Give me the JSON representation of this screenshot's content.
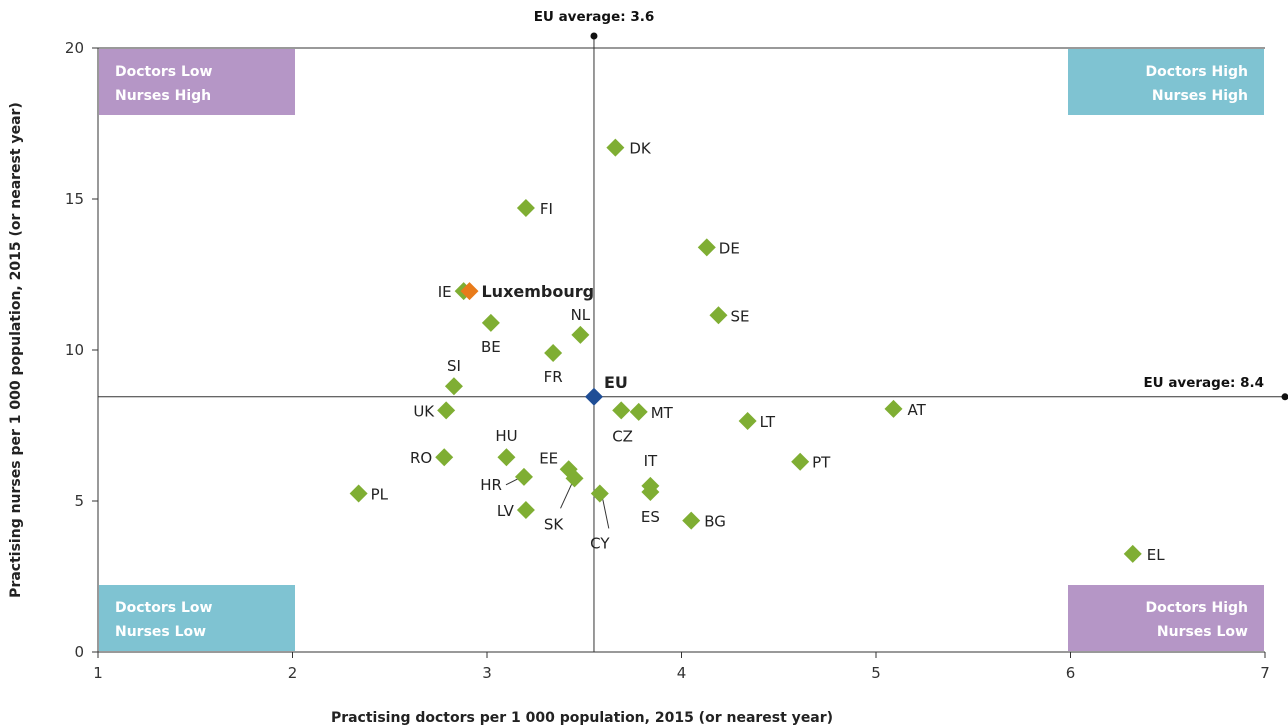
{
  "chart_data": {
    "type": "scatter",
    "xlabel": "Practising doctors per 1 000 population, 2015 (or nearest year)",
    "ylabel": "Practising nurses per 1 000 population, 2015 (or nearest year)",
    "xlim": [
      1,
      7
    ],
    "ylim": [
      0,
      20
    ],
    "x_ticks": [
      "1",
      "2",
      "3",
      "4",
      "5",
      "6",
      "7"
    ],
    "y_ticks": [
      "0",
      "5",
      "10",
      "15",
      "20"
    ],
    "grid": false,
    "reference_lines": {
      "x_average": {
        "value": 3.55,
        "label": "EU average: 3.6"
      },
      "y_average": {
        "value": 8.45,
        "label": "EU average: 8.4"
      }
    },
    "quadrant_labels": [
      {
        "position": "top-left",
        "line1": "Doctors Low",
        "line2": "Nurses High",
        "color": "#b596c6"
      },
      {
        "position": "top-right",
        "line1": "Doctors High",
        "line2": "Nurses High",
        "color": "#7fc3d2"
      },
      {
        "position": "bottom-left",
        "line1": "Doctors Low",
        "line2": "Nurses Low",
        "color": "#7fc3d2"
      },
      {
        "position": "bottom-right",
        "line1": "Doctors High",
        "line2": "Nurses Low",
        "color": "#b596c6"
      }
    ],
    "colors": {
      "country": "#7fae33",
      "highlight": "#e87b1a",
      "eu": "#1f4e96",
      "line": "#333333"
    },
    "points": [
      {
        "label": "DK",
        "x": 3.66,
        "y": 16.7,
        "kind": "country"
      },
      {
        "label": "FI",
        "x": 3.2,
        "y": 14.7,
        "kind": "country"
      },
      {
        "label": "DE",
        "x": 4.13,
        "y": 13.4,
        "kind": "country"
      },
      {
        "label": "IE",
        "x": 2.88,
        "y": 11.95,
        "kind": "country"
      },
      {
        "label": "Luxembourg",
        "x": 2.91,
        "y": 11.95,
        "kind": "highlight"
      },
      {
        "label": "SE",
        "x": 4.19,
        "y": 11.15,
        "kind": "country"
      },
      {
        "label": "BE",
        "x": 3.02,
        "y": 10.9,
        "kind": "country"
      },
      {
        "label": "NL",
        "x": 3.48,
        "y": 10.5,
        "kind": "country"
      },
      {
        "label": "FR",
        "x": 3.34,
        "y": 9.9,
        "kind": "country"
      },
      {
        "label": "SI",
        "x": 2.83,
        "y": 8.8,
        "kind": "country"
      },
      {
        "label": "EU",
        "x": 3.55,
        "y": 8.45,
        "kind": "eu"
      },
      {
        "label": "AT",
        "x": 5.09,
        "y": 8.05,
        "kind": "country"
      },
      {
        "label": "UK",
        "x": 2.79,
        "y": 8.0,
        "kind": "country"
      },
      {
        "label": "CZ",
        "x": 3.69,
        "y": 8.0,
        "kind": "country"
      },
      {
        "label": "MT",
        "x": 3.78,
        "y": 7.95,
        "kind": "country"
      },
      {
        "label": "LT",
        "x": 4.34,
        "y": 7.65,
        "kind": "country"
      },
      {
        "label": "HU",
        "x": 3.1,
        "y": 6.45,
        "kind": "country"
      },
      {
        "label": "RO",
        "x": 2.78,
        "y": 6.45,
        "kind": "country"
      },
      {
        "label": "PT",
        "x": 4.61,
        "y": 6.3,
        "kind": "country"
      },
      {
        "label": "EE",
        "x": 3.42,
        "y": 6.05,
        "kind": "country"
      },
      {
        "label": "HR",
        "x": 3.19,
        "y": 5.8,
        "kind": "country"
      },
      {
        "label": "SK",
        "x": 3.45,
        "y": 5.75,
        "kind": "country"
      },
      {
        "label": "IT",
        "x": 3.84,
        "y": 5.5,
        "kind": "country"
      },
      {
        "label": "ES",
        "x": 3.84,
        "y": 5.3,
        "kind": "country"
      },
      {
        "label": "CY",
        "x": 3.58,
        "y": 5.25,
        "kind": "country"
      },
      {
        "label": "PL",
        "x": 2.34,
        "y": 5.25,
        "kind": "country"
      },
      {
        "label": "LV",
        "x": 3.2,
        "y": 4.7,
        "kind": "country"
      },
      {
        "label": "BG",
        "x": 4.05,
        "y": 4.35,
        "kind": "country"
      },
      {
        "label": "EL",
        "x": 6.32,
        "y": 3.25,
        "kind": "country"
      }
    ]
  }
}
